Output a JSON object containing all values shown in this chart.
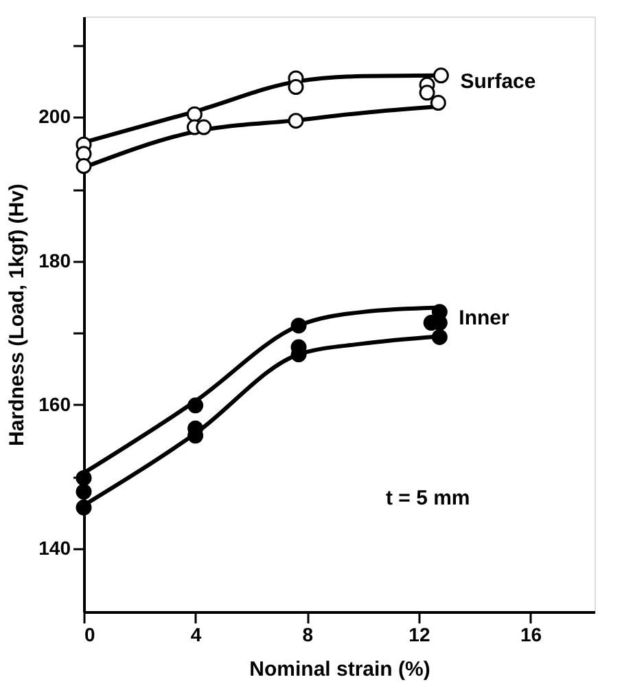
{
  "chart_data": {
    "type": "scatter",
    "xlabel": "Nominal strain (%)",
    "ylabel": "Hardness (Load, 1kgf) (Hv)",
    "xlim": [
      0,
      18.3
    ],
    "xticks": [
      0,
      4,
      8,
      12,
      16
    ],
    "ylim": [
      131.2,
      214
    ],
    "yticks": [
      140,
      {
        "value": 150,
        "label": null
      },
      160,
      {
        "value": 170,
        "label": null
      },
      180,
      {
        "value": 190,
        "label": null
      },
      200,
      {
        "value": 210,
        "label": null
      }
    ],
    "grid": false,
    "annotations": [
      "t = 5 mm"
    ],
    "series": [
      {
        "name": "Surface",
        "marker": "circle",
        "color": "#ffffff",
        "x": [
          0,
          0,
          0,
          3.97,
          3.97,
          4.3,
          7.6,
          7.6,
          7.6,
          12.3,
          12.3,
          12.7,
          12.8
        ],
        "values": [
          196.2,
          194.9,
          193.2,
          200.4,
          198.6,
          198.6,
          205.4,
          204.2,
          199.5,
          204.5,
          203.4,
          202.0,
          205.8
        ]
      },
      {
        "name": "Inner",
        "marker": "circle",
        "color": "#000000",
        "x": [
          0,
          0,
          0,
          4,
          4,
          4,
          7.7,
          7.7,
          7.7,
          12.45,
          12.75,
          12.75,
          12.75
        ],
        "values": [
          149.8,
          147.9,
          145.7,
          159.9,
          156.7,
          155.7,
          171.0,
          168.0,
          167.0,
          171.4,
          172.9,
          171.4,
          169.4
        ]
      },
      {
        "type": "line",
        "color": "#000000",
        "marker": "none",
        "line_style": "solid",
        "x": [
          0,
          4,
          7.7,
          10,
          12.75
        ],
        "values": [
          196.5,
          200.8,
          205.0,
          205.7,
          205.8
        ]
      },
      {
        "type": "line",
        "color": "#000000",
        "marker": "none",
        "line_style": "solid",
        "x": [
          0,
          4,
          7.7,
          10,
          12.75
        ],
        "values": [
          193.0,
          198.0,
          199.6,
          200.6,
          201.5
        ]
      },
      {
        "type": "line",
        "color": "#000000",
        "marker": "none",
        "line_style": "solid",
        "x": [
          0,
          4,
          7.7,
          10,
          12.75
        ],
        "values": [
          150.5,
          160.5,
          171.0,
          172.9,
          173.5
        ]
      },
      {
        "type": "line",
        "color": "#000000",
        "marker": "none",
        "line_style": "solid",
        "x": [
          0,
          4,
          7.7,
          10,
          12.75
        ],
        "values": [
          146.0,
          156.0,
          167.0,
          168.5,
          169.5
        ]
      }
    ]
  }
}
